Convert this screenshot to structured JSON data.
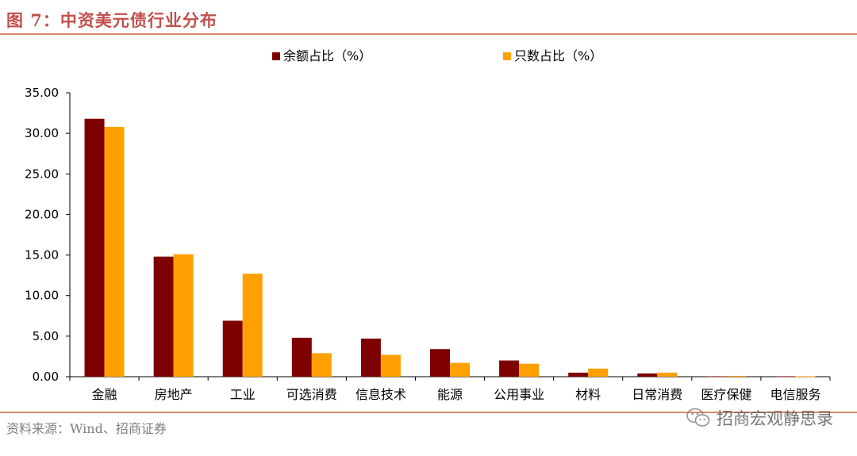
{
  "figure": {
    "title": "图 7：中资美元债行业分布",
    "source": "资料来源：Wind、招商证券",
    "watermark": "招商宏观静思录"
  },
  "colors": {
    "series1": "#7f0000",
    "series2": "#ffa000",
    "title": "#c0504d",
    "rule": "#d9896a"
  },
  "icons": {
    "watermark_icon": "wechat-logo-icon"
  },
  "chart_data": {
    "type": "bar",
    "title": "",
    "xlabel": "",
    "ylabel": "",
    "categories": [
      "金融",
      "房地产",
      "工业",
      "可选消费",
      "信息技术",
      "能源",
      "公用事业",
      "材料",
      "日常消费",
      "医疗保健",
      "电信服务"
    ],
    "series": [
      {
        "name": "余额占比（%）",
        "color": "#7f0000",
        "values": [
          31.8,
          14.8,
          6.9,
          4.8,
          4.7,
          3.4,
          2.0,
          0.5,
          0.4,
          0.05,
          0.05
        ]
      },
      {
        "name": "只数占比（%）",
        "color": "#ffa000",
        "values": [
          30.8,
          15.1,
          12.7,
          2.9,
          2.7,
          1.7,
          1.6,
          1.0,
          0.5,
          0.1,
          0.05
        ]
      }
    ],
    "yticks": [
      "0.00",
      "5.00",
      "10.00",
      "15.00",
      "20.00",
      "25.00",
      "30.00",
      "35.00"
    ],
    "ylim": [
      0,
      35
    ],
    "grid": false,
    "legend_position": "top-center"
  }
}
